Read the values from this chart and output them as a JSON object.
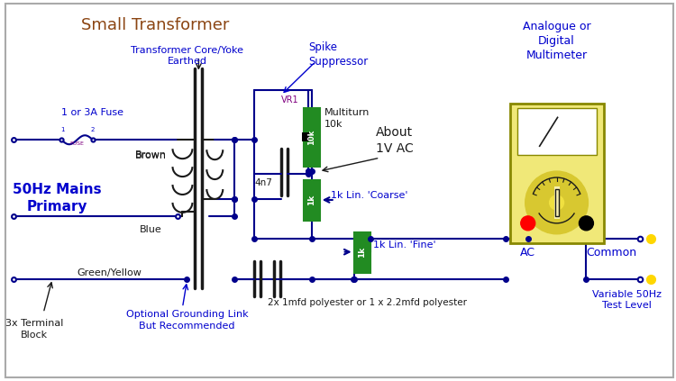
{
  "bg_color": "#ffffff",
  "wire_color": "#00008B",
  "text_blue": "#0000CD",
  "text_black": "#1a1a1a",
  "text_brown": "#8B4513",
  "text_magenta": "#800080",
  "green_comp": "#228B22",
  "meter_bg": "#f0e878",
  "meter_border": "#888800",
  "labels": {
    "title": "Small Transformer",
    "core_yoke": "Transformer Core/Yoke",
    "earthed": "Earthed",
    "fuse": "1 or 3A Fuse",
    "brown": "Brown",
    "blue": "Blue",
    "green_yellow": "Green/Yellow",
    "mains": "50Hz Mains\nPrimary",
    "terminal": "3x Terminal\nBlock",
    "grounding": "Optional Grounding Link\nBut Recommended",
    "spike": "Spike\nSuppressor",
    "vr1": "VR1",
    "multiturn": "Multiturn\n10k",
    "about1v": "About\n1V AC",
    "cap4n7": "4n7",
    "coarse": "1k Lin. 'Coarse'",
    "fine": "1k Lin. 'Fine'",
    "cap_bottom": "2x 1mfd polyester or 1 x 2.2mfd polyester",
    "meter_label": "Analogue or\nDigital\nMultimeter",
    "ac": "AC",
    "common": "Common",
    "var50hz": "Variable 50Hz\nTest Level"
  }
}
